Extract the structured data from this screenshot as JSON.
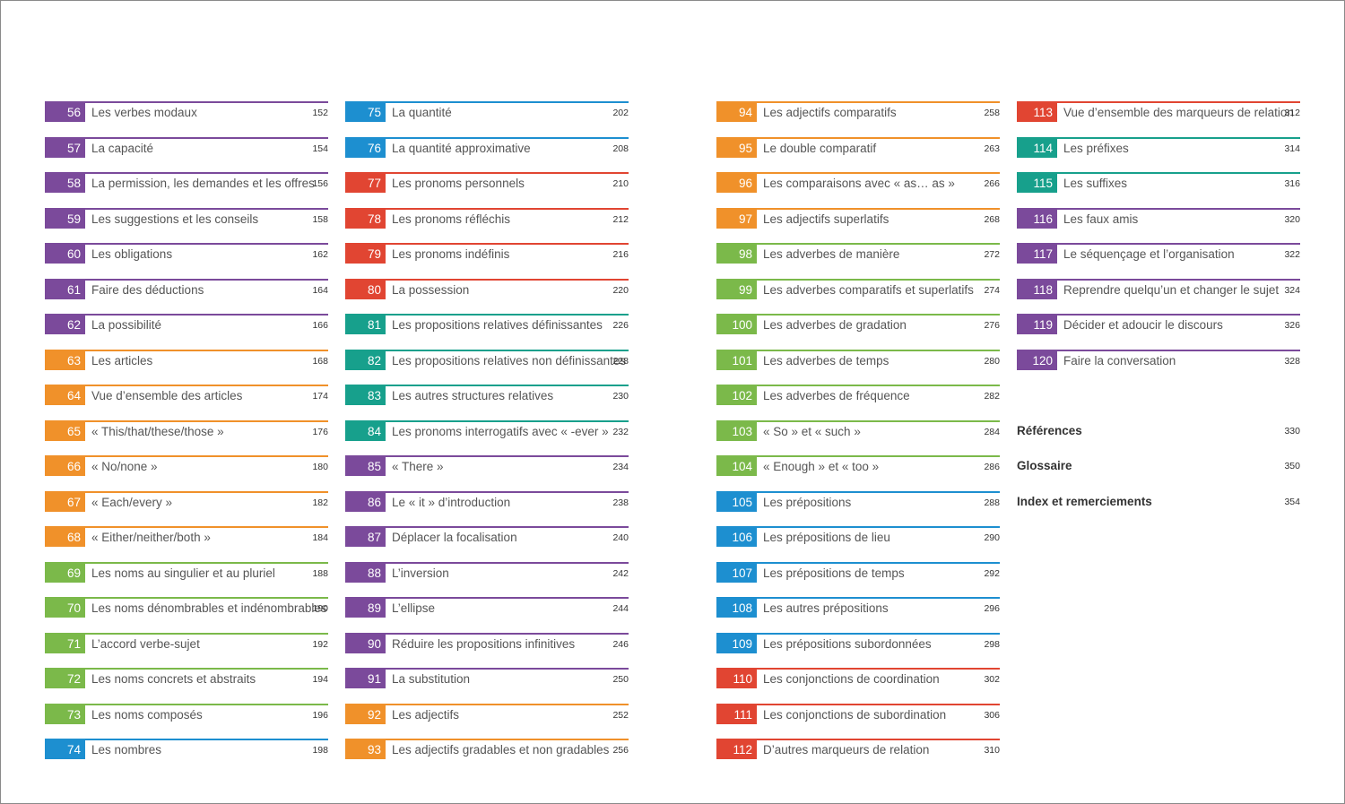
{
  "colors": {
    "purple": "#7b4a9b",
    "blue": "#1d8fd0",
    "red": "#e14532",
    "orange": "#f0912a",
    "green": "#7bb94a",
    "teal": "#17a08c"
  },
  "columns": [
    [
      {
        "num": "56",
        "title": "Les verbes modaux",
        "page": "152",
        "color": "#7b4a9b"
      },
      {
        "num": "57",
        "title": "La capacité",
        "page": "154",
        "color": "#7b4a9b"
      },
      {
        "num": "58",
        "title": "La permission, les demandes et les offres",
        "page": "156",
        "color": "#7b4a9b"
      },
      {
        "num": "59",
        "title": "Les suggestions et les conseils",
        "page": "158",
        "color": "#7b4a9b"
      },
      {
        "num": "60",
        "title": "Les obligations",
        "page": "162",
        "color": "#7b4a9b"
      },
      {
        "num": "61",
        "title": "Faire des déductions",
        "page": "164",
        "color": "#7b4a9b"
      },
      {
        "num": "62",
        "title": "La possibilité",
        "page": "166",
        "color": "#7b4a9b"
      },
      {
        "num": "63",
        "title": "Les articles",
        "page": "168",
        "color": "#f0912a"
      },
      {
        "num": "64",
        "title": "Vue d’ensemble des articles",
        "page": "174",
        "color": "#f0912a"
      },
      {
        "num": "65",
        "title": "« This/that/these/those »",
        "page": "176",
        "color": "#f0912a"
      },
      {
        "num": "66",
        "title": "« No/none »",
        "page": "180",
        "color": "#f0912a"
      },
      {
        "num": "67",
        "title": "« Each/every »",
        "page": "182",
        "color": "#f0912a"
      },
      {
        "num": "68",
        "title": "« Either/neither/both »",
        "page": "184",
        "color": "#f0912a"
      },
      {
        "num": "69",
        "title": "Les noms au singulier et au pluriel",
        "page": "188",
        "color": "#7bb94a"
      },
      {
        "num": "70",
        "title": "Les noms dénombrables et indénombrables",
        "page": "190",
        "color": "#7bb94a"
      },
      {
        "num": "71",
        "title": "L’accord verbe-sujet",
        "page": "192",
        "color": "#7bb94a"
      },
      {
        "num": "72",
        "title": "Les noms concrets et abstraits",
        "page": "194",
        "color": "#7bb94a"
      },
      {
        "num": "73",
        "title": "Les noms composés",
        "page": "196",
        "color": "#7bb94a"
      },
      {
        "num": "74",
        "title": "Les nombres",
        "page": "198",
        "color": "#1d8fd0"
      }
    ],
    [
      {
        "num": "75",
        "title": "La quantité",
        "page": "202",
        "color": "#1d8fd0"
      },
      {
        "num": "76",
        "title": "La quantité approximative",
        "page": "208",
        "color": "#1d8fd0"
      },
      {
        "num": "77",
        "title": "Les pronoms personnels",
        "page": "210",
        "color": "#e14532"
      },
      {
        "num": "78",
        "title": "Les pronoms réfléchis",
        "page": "212",
        "color": "#e14532"
      },
      {
        "num": "79",
        "title": "Les pronoms indéfinis",
        "page": "216",
        "color": "#e14532"
      },
      {
        "num": "80",
        "title": "La possession",
        "page": "220",
        "color": "#e14532"
      },
      {
        "num": "81",
        "title": "Les propositions relatives définissantes",
        "page": "226",
        "color": "#17a08c"
      },
      {
        "num": "82",
        "title": "Les propositions relatives non définissantes",
        "page": "228",
        "color": "#17a08c"
      },
      {
        "num": "83",
        "title": "Les autres structures relatives",
        "page": "230",
        "color": "#17a08c"
      },
      {
        "num": "84",
        "title": "Les pronoms interrogatifs avec « -ever »",
        "page": "232",
        "color": "#17a08c"
      },
      {
        "num": "85",
        "title": "« There »",
        "page": "234",
        "color": "#7b4a9b"
      },
      {
        "num": "86",
        "title": "Le « it » d’introduction",
        "page": "238",
        "color": "#7b4a9b"
      },
      {
        "num": "87",
        "title": "Déplacer la focalisation",
        "page": "240",
        "color": "#7b4a9b"
      },
      {
        "num": "88",
        "title": "L’inversion",
        "page": "242",
        "color": "#7b4a9b"
      },
      {
        "num": "89",
        "title": "L’ellipse",
        "page": "244",
        "color": "#7b4a9b"
      },
      {
        "num": "90",
        "title": "Réduire les propositions infinitives",
        "page": "246",
        "color": "#7b4a9b"
      },
      {
        "num": "91",
        "title": "La substitution",
        "page": "250",
        "color": "#7b4a9b"
      },
      {
        "num": "92",
        "title": "Les adjectifs",
        "page": "252",
        "color": "#f0912a"
      },
      {
        "num": "93",
        "title": "Les adjectifs gradables et non gradables",
        "page": "256",
        "color": "#f0912a"
      }
    ],
    [
      {
        "num": "94",
        "title": "Les adjectifs comparatifs",
        "page": "258",
        "color": "#f0912a"
      },
      {
        "num": "95",
        "title": "Le double comparatif",
        "page": "263",
        "color": "#f0912a"
      },
      {
        "num": "96",
        "title": "Les comparaisons avec « as… as »",
        "page": "266",
        "color": "#f0912a"
      },
      {
        "num": "97",
        "title": "Les adjectifs superlatifs",
        "page": "268",
        "color": "#f0912a"
      },
      {
        "num": "98",
        "title": "Les adverbes de manière",
        "page": "272",
        "color": "#7bb94a"
      },
      {
        "num": "99",
        "title": "Les adverbes comparatifs et superlatifs",
        "page": "274",
        "color": "#7bb94a"
      },
      {
        "num": "100",
        "title": "Les adverbes de gradation",
        "page": "276",
        "color": "#7bb94a"
      },
      {
        "num": "101",
        "title": "Les adverbes de temps",
        "page": "280",
        "color": "#7bb94a"
      },
      {
        "num": "102",
        "title": "Les adverbes de fréquence",
        "page": "282",
        "color": "#7bb94a"
      },
      {
        "num": "103",
        "title": "« So » et « such »",
        "page": "284",
        "color": "#7bb94a"
      },
      {
        "num": "104",
        "title": "« Enough » et « too »",
        "page": "286",
        "color": "#7bb94a"
      },
      {
        "num": "105",
        "title": "Les prépositions",
        "page": "288",
        "color": "#1d8fd0"
      },
      {
        "num": "106",
        "title": "Les prépositions de lieu",
        "page": "290",
        "color": "#1d8fd0"
      },
      {
        "num": "107",
        "title": "Les prépositions de temps",
        "page": "292",
        "color": "#1d8fd0"
      },
      {
        "num": "108",
        "title": "Les autres prépositions",
        "page": "296",
        "color": "#1d8fd0"
      },
      {
        "num": "109",
        "title": "Les prépositions subordonnées",
        "page": "298",
        "color": "#1d8fd0"
      },
      {
        "num": "110",
        "title": "Les conjonctions de coordination",
        "page": "302",
        "color": "#e14532"
      },
      {
        "num": "111",
        "title": "Les conjonctions de subordination",
        "page": "306",
        "color": "#e14532"
      },
      {
        "num": "112",
        "title": "D’autres marqueurs de relation",
        "page": "310",
        "color": "#e14532"
      }
    ],
    [
      {
        "num": "113",
        "title": "Vue d’ensemble des marqueurs de relation",
        "page": "312",
        "color": "#e14532"
      },
      {
        "num": "114",
        "title": "Les préfixes",
        "page": "314",
        "color": "#17a08c"
      },
      {
        "num": "115",
        "title": "Les suffixes",
        "page": "316",
        "color": "#17a08c"
      },
      {
        "num": "116",
        "title": "Les faux amis",
        "page": "320",
        "color": "#7b4a9b"
      },
      {
        "num": "117",
        "title": "Le séquençage et l’organisation",
        "page": "322",
        "color": "#7b4a9b"
      },
      {
        "num": "118",
        "title": "Reprendre quelqu’un et changer le sujet",
        "page": "324",
        "color": "#7b4a9b"
      },
      {
        "num": "119",
        "title": "Décider et adoucir le discours",
        "page": "326",
        "color": "#7b4a9b"
      },
      {
        "num": "120",
        "title": "Faire la conversation",
        "page": "328",
        "color": "#7b4a9b"
      }
    ]
  ],
  "appendix": [
    {
      "title": "Références",
      "page": "330"
    },
    {
      "title": "Glossaire",
      "page": "350"
    },
    {
      "title": "Index et remerciements",
      "page": "354"
    }
  ]
}
